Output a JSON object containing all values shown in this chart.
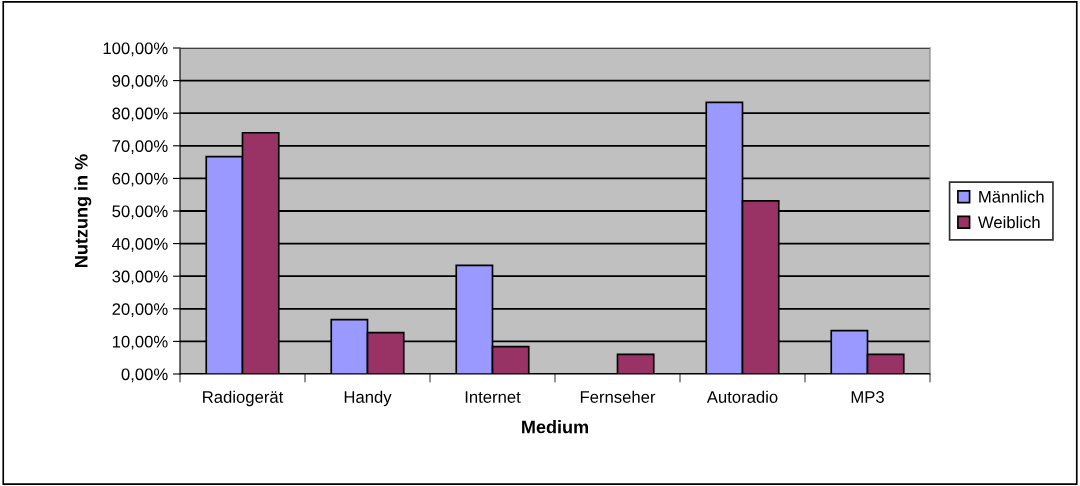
{
  "chart_data": {
    "type": "bar",
    "xlabel": "Medium",
    "ylabel": "Nutzung in %",
    "categories": [
      "Radiogerät",
      "Handy",
      "Internet",
      "Fernseher",
      "Autoradio",
      "MP3"
    ],
    "series": [
      {
        "name": "Männlich",
        "color": "#9999ff",
        "values": [
          66.7,
          16.7,
          33.3,
          null,
          83.3,
          13.3
        ]
      },
      {
        "name": "Weiblich",
        "color": "#993366",
        "values": [
          74,
          12.7,
          8.4,
          6,
          53.1,
          6
        ]
      }
    ],
    "ylim": [
      0,
      100
    ],
    "yticks": [
      {
        "value": 0,
        "label": "0,00%"
      },
      {
        "value": 10,
        "label": "10,00%"
      },
      {
        "value": 20,
        "label": "20,00%"
      },
      {
        "value": 30,
        "label": "30,00%"
      },
      {
        "value": 40,
        "label": "40,00%"
      },
      {
        "value": 50,
        "label": "50,00%"
      },
      {
        "value": 60,
        "label": "60,00%"
      },
      {
        "value": 70,
        "label": "70,00%"
      },
      {
        "value": 80,
        "label": "80,00%"
      },
      {
        "value": 90,
        "label": "90,00%"
      },
      {
        "value": 100,
        "label": "100,00%"
      }
    ],
    "grid": "y",
    "legend": "right"
  }
}
